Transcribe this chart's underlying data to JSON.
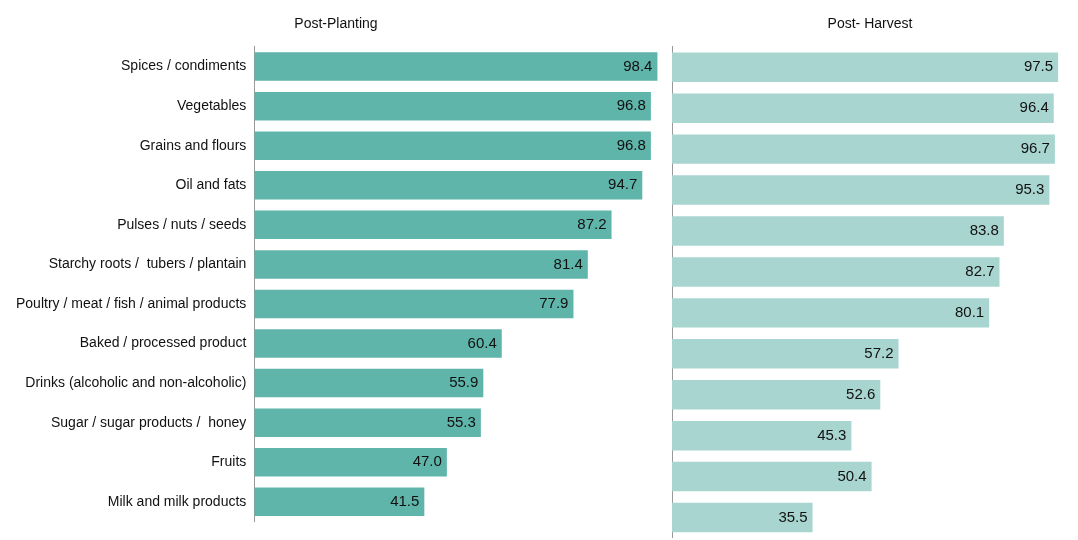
{
  "chart_data": [
    {
      "type": "bar",
      "orientation": "horizontal",
      "title": "Post-Planting",
      "categories": [
        "Spices / condiments",
        "Vegetables",
        "Grains and flours",
        "Oil and fats",
        "Pulses / nuts / seeds",
        "Starchy roots /  tubers / plantain",
        "Poultry / meat / fish / animal products",
        "Baked / processed product",
        "Drinks (alcoholic and non-alcoholic)",
        "Sugar / sugar products /  honey",
        "Fruits",
        "Milk and milk products"
      ],
      "values": [
        98.4,
        96.8,
        96.8,
        94.7,
        87.2,
        81.4,
        77.9,
        60.4,
        55.9,
        55.3,
        47.0,
        41.5
      ],
      "value_labels": [
        "98.4",
        "96.8",
        "96.8",
        "94.7",
        "87.2",
        "81.4",
        "77.9",
        "60.4",
        "55.9",
        "55.3",
        "47.0",
        "41.5"
      ],
      "color": "#5fb5aa",
      "grid": false,
      "legend": false,
      "tick_labels": "y"
    },
    {
      "type": "bar",
      "orientation": "horizontal",
      "title": "Post- Harvest",
      "categories": [
        null,
        null,
        null,
        null,
        null,
        null,
        null,
        null,
        null,
        null,
        null,
        null
      ],
      "values": [
        97.5,
        96.4,
        96.7,
        95.3,
        83.8,
        82.7,
        80.1,
        57.2,
        52.6,
        45.3,
        50.4,
        35.5
      ],
      "value_labels": [
        "97.5",
        "96.4",
        "96.7",
        "95.3",
        "83.8",
        "82.7",
        "80.1",
        "57.2",
        "52.6",
        "45.3",
        "50.4",
        "35.5"
      ],
      "color": "#a8d5d0",
      "grid": false,
      "legend": false,
      "tick_labels": false
    }
  ]
}
